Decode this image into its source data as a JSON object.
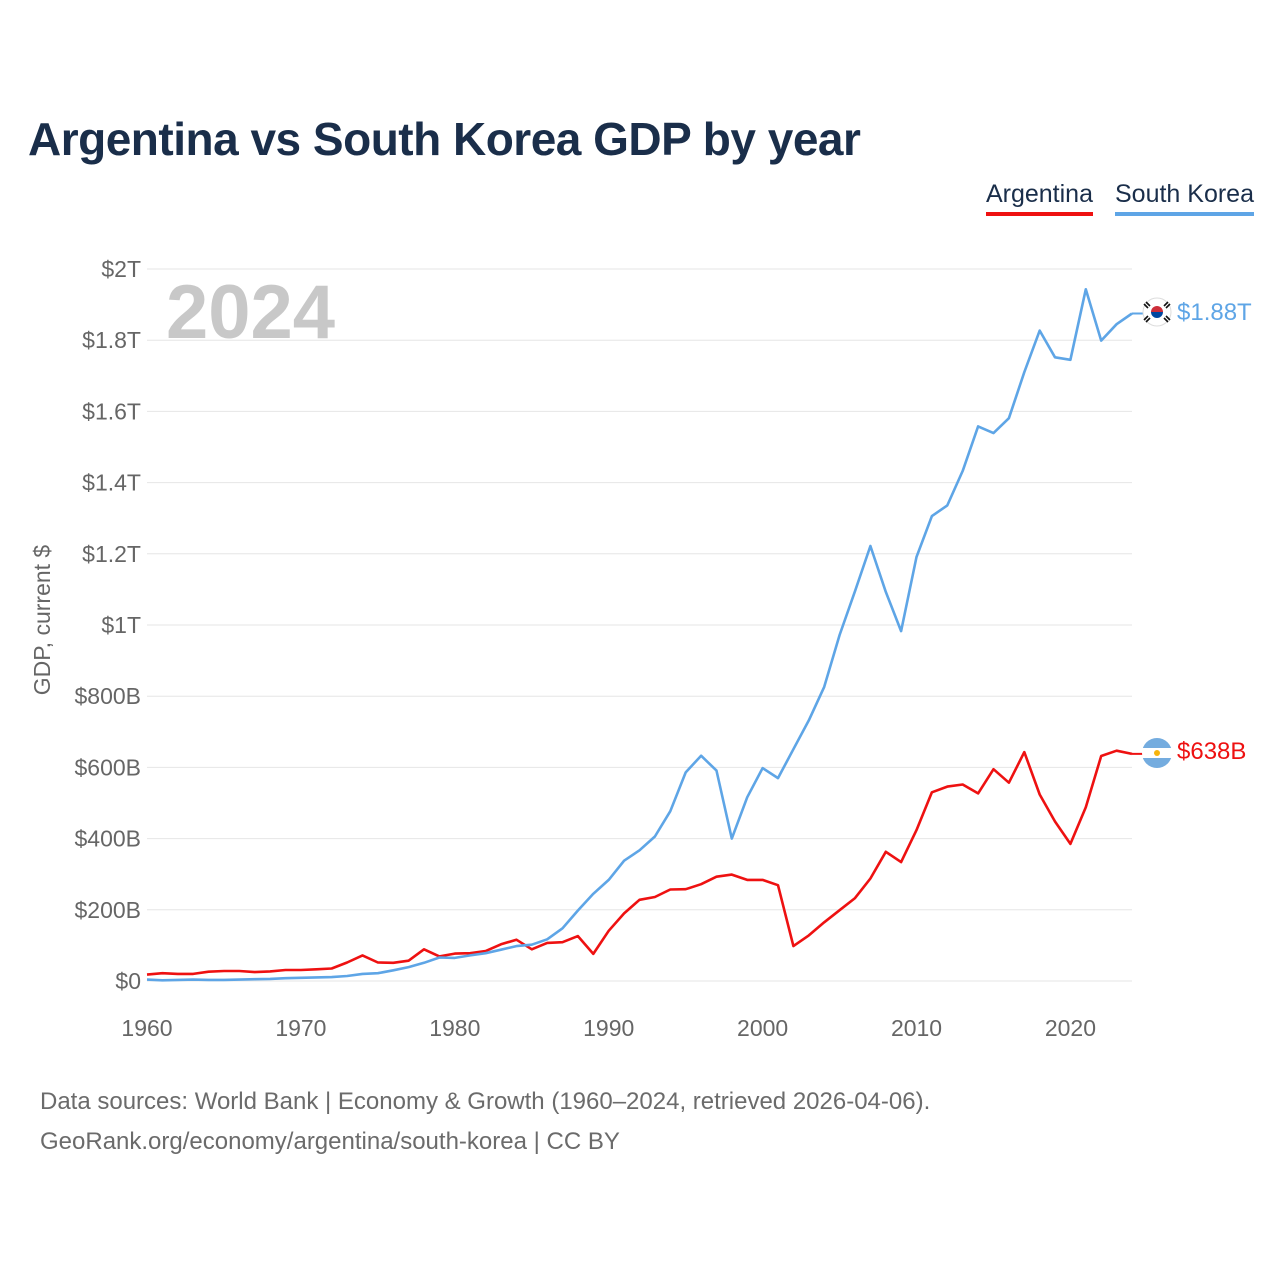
{
  "header": {
    "title": "Argentina vs South Korea GDP by year"
  },
  "legend": {
    "argentina": "Argentina",
    "south_korea": "South Korea"
  },
  "colors": {
    "argentina": "#ee1111",
    "south_korea": "#5ea5e6",
    "grid": "#e6e6e6",
    "year": "#c8c8c8"
  },
  "source": {
    "line1": "Data sources: World Bank | Economy & Growth (1960–2024, retrieved 2026-04-06).",
    "line2": "GeoRank.org/economy/argentina/south-korea | CC BY"
  },
  "chart_data": {
    "type": "line",
    "title": "Argentina vs South Korea GDP by year",
    "xlabel": "",
    "ylabel": "GDP, current $",
    "year_label": "2024",
    "xlim": [
      1960,
      2024
    ],
    "ylim": [
      0,
      2000
    ],
    "unit": "billion USD",
    "x_ticks": [
      "1960",
      "1970",
      "1980",
      "1990",
      "2000",
      "2010",
      "2020"
    ],
    "y_ticks": [
      {
        "value": 0,
        "label": "$0"
      },
      {
        "value": 200,
        "label": "$200B"
      },
      {
        "value": 400,
        "label": "$400B"
      },
      {
        "value": 600,
        "label": "$600B"
      },
      {
        "value": 800,
        "label": "$800B"
      },
      {
        "value": 1000,
        "label": "$1T"
      },
      {
        "value": 1200,
        "label": "$1.2T"
      },
      {
        "value": 1400,
        "label": "$1.4T"
      },
      {
        "value": 1600,
        "label": "$1.6T"
      },
      {
        "value": 1800,
        "label": "$1.8T"
      },
      {
        "value": 2000,
        "label": "$2T"
      }
    ],
    "x": [
      1960,
      1961,
      1962,
      1963,
      1964,
      1965,
      1966,
      1967,
      1968,
      1969,
      1970,
      1971,
      1972,
      1973,
      1974,
      1975,
      1976,
      1977,
      1978,
      1979,
      1980,
      1981,
      1982,
      1983,
      1984,
      1985,
      1986,
      1987,
      1988,
      1989,
      1990,
      1991,
      1992,
      1993,
      1994,
      1995,
      1996,
      1997,
      1998,
      1999,
      2000,
      2001,
      2002,
      2003,
      2004,
      2005,
      2006,
      2007,
      2008,
      2009,
      2010,
      2011,
      2012,
      2013,
      2014,
      2015,
      2016,
      2017,
      2018,
      2019,
      2020,
      2021,
      2022,
      2023,
      2024
    ],
    "series": [
      {
        "name": "Argentina",
        "end_label": "$638B",
        "values": [
          18,
          22,
          20,
          20,
          26,
          28,
          28,
          25,
          27,
          31,
          31,
          33,
          35,
          52,
          72,
          52,
          51,
          57,
          89,
          69,
          77,
          78,
          84,
          103,
          116,
          89,
          107,
          109,
          126,
          76,
          141,
          190,
          228,
          236,
          257,
          258,
          272,
          293,
          299,
          284,
          284,
          269,
          98,
          128,
          165,
          199,
          233,
          288,
          363,
          334,
          424,
          530,
          546,
          552,
          527,
          595,
          557,
          643,
          524,
          448,
          385,
          488,
          632,
          647,
          638
        ]
      },
      {
        "name": "South Korea",
        "end_label": "$1.88T",
        "values": [
          4,
          2,
          3,
          4,
          3,
          3,
          4,
          5,
          6,
          8,
          9,
          10,
          11,
          14,
          20,
          22,
          30,
          39,
          51,
          66,
          65,
          72,
          78,
          88,
          98,
          102,
          117,
          148,
          198,
          245,
          284,
          338,
          367,
          406,
          477,
          586,
          633,
          591,
          400,
          516,
          598,
          570,
          651,
          732,
          826,
          972,
          1095,
          1222,
          1093,
          983,
          1191,
          1306,
          1336,
          1433,
          1558,
          1539,
          1581,
          1710,
          1827,
          1752,
          1745,
          1943,
          1799,
          1845,
          1875
        ]
      }
    ]
  }
}
